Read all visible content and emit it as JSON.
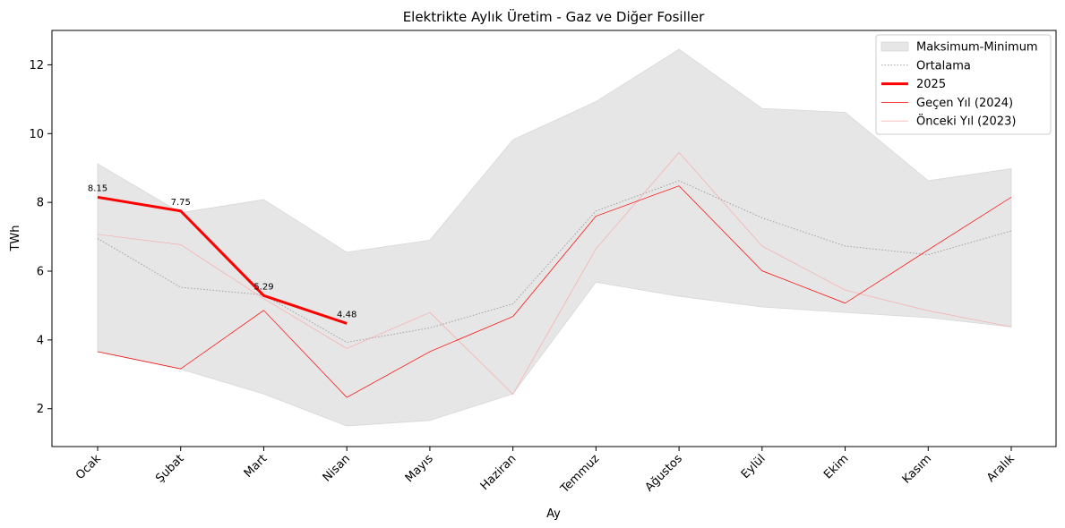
{
  "chart_data": {
    "type": "line",
    "title": "Elektrikte Aylık Üretim - Gaz ve Diğer Fosiller",
    "xlabel": "Ay",
    "ylabel": "TWh",
    "categories": [
      "Ocak",
      "Şubat",
      "Mart",
      "Nisan",
      "Mayıs",
      "Haziran",
      "Temmuz",
      "Ağustos",
      "Eylül",
      "Ekim",
      "Kasım",
      "Aralık"
    ],
    "ylim": [
      0.9,
      13.0
    ],
    "yticks": [
      2,
      4,
      6,
      8,
      10,
      12
    ],
    "grid": false,
    "legend_position": "top-right",
    "band": {
      "name": "Maksimum-Minimum",
      "color": "#e6e6e6",
      "max": [
        9.12,
        7.7,
        8.08,
        6.55,
        6.9,
        9.82,
        10.93,
        12.45,
        10.73,
        10.62,
        8.63,
        8.98
      ],
      "min": [
        3.65,
        3.15,
        2.43,
        1.5,
        1.66,
        2.43,
        5.68,
        5.27,
        4.96,
        4.8,
        4.65,
        4.38
      ]
    },
    "series": [
      {
        "name": "Ortalama",
        "color": "#a0a0a0",
        "width": 1,
        "dash": "1.5,2",
        "opacity": 1,
        "values": [
          6.95,
          5.53,
          5.31,
          3.93,
          4.35,
          5.05,
          7.75,
          8.63,
          7.55,
          6.73,
          6.48,
          7.17
        ]
      },
      {
        "name": "Önceki Yıl (2023)",
        "color": "#ff9999",
        "width": 0.6,
        "dash": "",
        "opacity": 0.9,
        "values": [
          7.07,
          6.77,
          5.2,
          3.75,
          4.8,
          2.42,
          6.65,
          9.45,
          6.73,
          5.45,
          4.85,
          4.38
        ]
      },
      {
        "name": "Geçen Yıl (2024)",
        "color": "#ff0000",
        "width": 0.7,
        "dash": "",
        "opacity": 1,
        "values": [
          3.66,
          3.16,
          4.86,
          2.33,
          3.66,
          4.68,
          7.6,
          8.48,
          6.01,
          5.07,
          6.62,
          8.15
        ]
      },
      {
        "name": "2025",
        "color": "#ff0000",
        "width": 3,
        "dash": "",
        "opacity": 1,
        "values": [
          8.15,
          7.75,
          5.29,
          4.48,
          null,
          null,
          null,
          null,
          null,
          null,
          null,
          null
        ],
        "labels": [
          "8.15",
          "7.75",
          "5.29",
          "4.48"
        ]
      }
    ],
    "legend": [
      {
        "label": "Maksimum-Minimum",
        "kind": "band"
      },
      {
        "label": "Ortalama",
        "kind": "dotted"
      },
      {
        "label": "2025",
        "kind": "thick"
      },
      {
        "label": "Geçen Yıl (2024)",
        "kind": "thin"
      },
      {
        "label": "Önceki Yıl (2023)",
        "kind": "faint"
      }
    ]
  }
}
